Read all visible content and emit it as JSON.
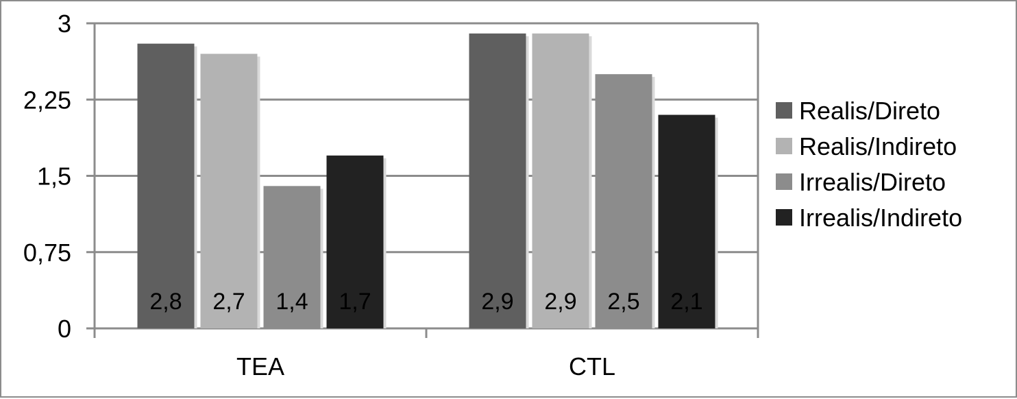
{
  "chart_data": {
    "type": "bar",
    "title": "",
    "xlabel": "",
    "ylabel": "",
    "categories": [
      "TEA",
      "CTL"
    ],
    "series": [
      {
        "name": "Realis/Direto",
        "values": [
          2.8,
          2.9
        ],
        "labels": [
          "2,8",
          "2,9"
        ],
        "color": "#5f5f5f"
      },
      {
        "name": "Realis/Indireto",
        "values": [
          2.7,
          2.9
        ],
        "labels": [
          "2,7",
          "2,9"
        ],
        "color": "#b3b3b3"
      },
      {
        "name": "Irrealis/Direto",
        "values": [
          1.4,
          2.5
        ],
        "labels": [
          "1,4",
          "2,5"
        ],
        "color": "#8c8c8c"
      },
      {
        "name": "Irrealis/Indireto",
        "values": [
          1.7,
          2.1
        ],
        "labels": [
          "1,7",
          "2,1"
        ],
        "color": "#222222"
      }
    ],
    "yticks": [
      0,
      0.75,
      1.5,
      2.25,
      3
    ],
    "ytick_labels": [
      "0",
      "0,75",
      "1,5",
      "2,25",
      "3"
    ],
    "ylim": [
      0,
      3
    ],
    "grid": true,
    "legend_position": "right"
  }
}
